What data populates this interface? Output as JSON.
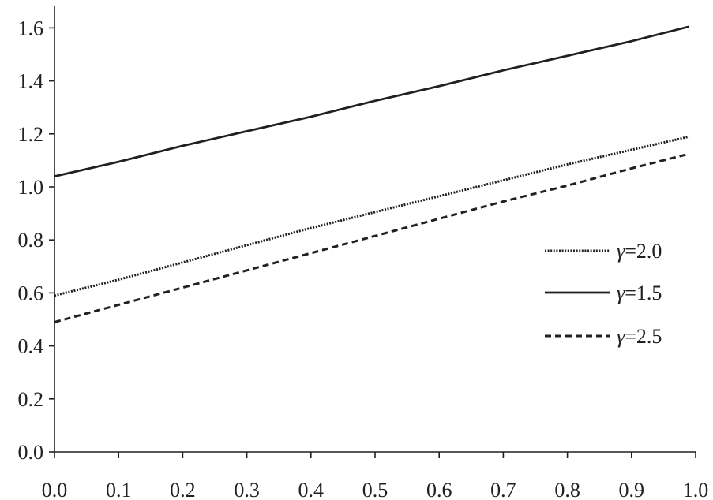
{
  "chart_data": {
    "type": "line",
    "title": "",
    "xlabel": "",
    "ylabel": "",
    "xlim": [
      0.0,
      1.0
    ],
    "ylim": [
      0.0,
      1.7
    ],
    "x_ticks": [
      "0.0",
      "0.1",
      "0.2",
      "0.3",
      "0.4",
      "0.5",
      "0.6",
      "0.7",
      "0.8",
      "0.9",
      "1.0"
    ],
    "y_ticks": [
      "0.0",
      "0.2",
      "0.4",
      "0.6",
      "0.8",
      "1.0",
      "1.2",
      "1.4",
      "1.6"
    ],
    "grid": false,
    "legend_position": "right",
    "legend_symbol": "γ",
    "series": [
      {
        "name": "=2.0",
        "style": "dotted",
        "color": "#231f20",
        "x": [
          0.0,
          0.1,
          0.2,
          0.3,
          0.4,
          0.5,
          0.6,
          0.7,
          0.8,
          0.9,
          0.99
        ],
        "values": [
          0.59,
          0.65,
          0.715,
          0.78,
          0.845,
          0.905,
          0.965,
          1.025,
          1.085,
          1.14,
          1.19
        ]
      },
      {
        "name": "=1.5",
        "style": "solid",
        "color": "#231f20",
        "x": [
          0.0,
          0.1,
          0.2,
          0.3,
          0.4,
          0.5,
          0.6,
          0.7,
          0.8,
          0.9,
          0.99
        ],
        "values": [
          1.04,
          1.095,
          1.155,
          1.21,
          1.265,
          1.325,
          1.38,
          1.44,
          1.495,
          1.55,
          1.605
        ]
      },
      {
        "name": "=2.5",
        "style": "dashed",
        "color": "#231f20",
        "x": [
          0.0,
          0.1,
          0.2,
          0.3,
          0.4,
          0.5,
          0.6,
          0.7,
          0.8,
          0.9,
          0.99
        ],
        "values": [
          0.49,
          0.555,
          0.62,
          0.685,
          0.75,
          0.815,
          0.88,
          0.945,
          1.005,
          1.07,
          1.125
        ]
      }
    ]
  }
}
